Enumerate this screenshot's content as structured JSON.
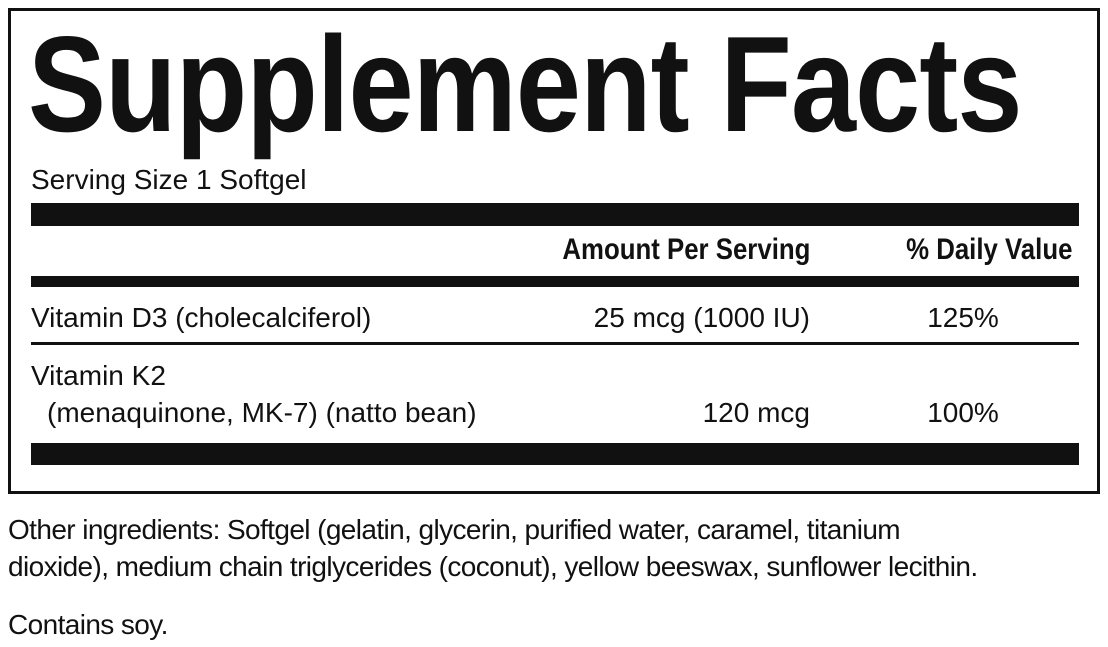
{
  "title": "Supplement Facts",
  "serving_size": "Serving Size 1 Softgel",
  "headers": {
    "amount": "Amount Per Serving",
    "dv": "% Daily Value"
  },
  "rows": [
    {
      "name": "Vitamin D3 (cholecalciferol)",
      "sub": "",
      "amount": "25 mcg (1000 IU)",
      "dv": "125%"
    },
    {
      "name": "Vitamin K2",
      "sub": "(menaquinone, MK-7) (natto bean)",
      "amount": "120 mcg",
      "dv": "100%"
    }
  ],
  "other_ingredients": {
    "line1": "Other ingredients: Softgel (gelatin, glycerin, purified water, caramel, titanium",
    "line2": "dioxide), medium chain triglycerides (coconut), yellow beeswax, sunflower lecithin.",
    "allergen": "Contains soy."
  }
}
